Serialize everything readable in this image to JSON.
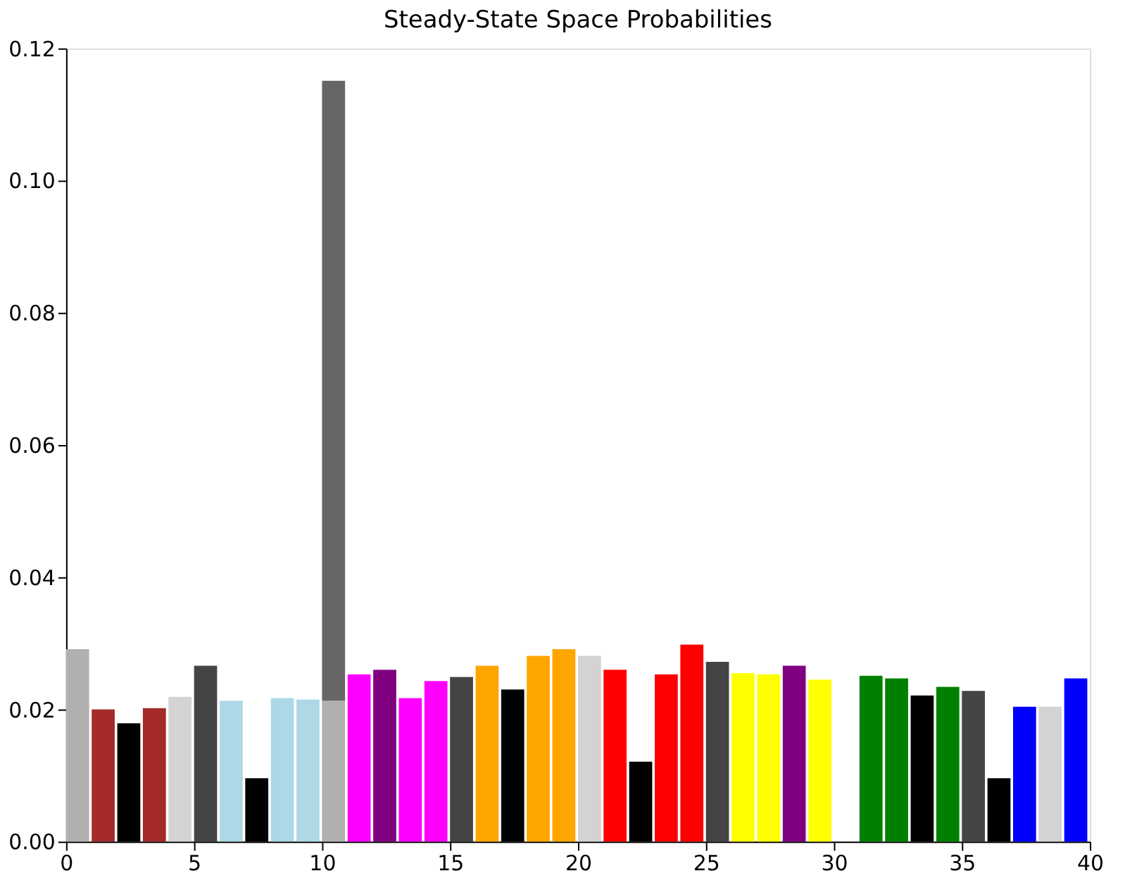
{
  "chart_data": {
    "type": "bar",
    "title": "Steady-State Space Probabilities",
    "stacked": true,
    "x": [
      0.45,
      1.45,
      2.45,
      3.45,
      4.45,
      5.45,
      6.45,
      7.45,
      8.45,
      9.45,
      10.45,
      11.45,
      12.45,
      13.45,
      14.45,
      15.45,
      16.45,
      17.45,
      18.45,
      19.45,
      20.45,
      21.45,
      22.45,
      23.45,
      24.45,
      25.45,
      26.45,
      27.45,
      28.45,
      29.45,
      30.45,
      31.45,
      32.45,
      33.45,
      34.45,
      35.45,
      36.45,
      37.45,
      38.45,
      39.45
    ],
    "series": [
      {
        "colors": [
          "#b0b0b0",
          "#a52a2a",
          "#000000",
          "#a52a2a",
          "#d3d3d3",
          "#444444",
          "#add8e6",
          "#000000",
          "#add8e6",
          "#add8e6",
          "#b0b0b0",
          "#ff00ff",
          "#800080",
          "#ff00ff",
          "#ff00ff",
          "#444444",
          "#ffa500",
          "#000000",
          "#ffa500",
          "#ffa500",
          "#d3d3d3",
          "#ff0000",
          "#000000",
          "#ff0000",
          "#ff0000",
          "#444444",
          "#ffff00",
          "#ffff00",
          "#800080",
          "#ffff00",
          "#ffffff",
          "#008000",
          "#008000",
          "#000000",
          "#008000",
          "#444444",
          "#000000",
          "#0000ff",
          "#d3d3d3",
          "#0000ff"
        ],
        "values": [
          0.0291,
          0.02,
          0.0179,
          0.0202,
          0.0219,
          0.0266,
          0.0213,
          0.0096,
          0.0217,
          0.0215,
          0.0213,
          0.0253,
          0.026,
          0.0217,
          0.0243,
          0.0249,
          0.0266,
          0.023,
          0.0281,
          0.0291,
          0.0281,
          0.026,
          0.0121,
          0.0253,
          0.0298,
          0.0272,
          0.0255,
          0.0253,
          0.0266,
          0.0245,
          0,
          0.0251,
          0.0247,
          0.0221,
          0.0234,
          0.0228,
          0.0096,
          0.0204,
          0.0204,
          0.0247
        ]
      },
      {
        "color": "#666666",
        "values": [
          null,
          null,
          null,
          null,
          null,
          null,
          null,
          null,
          null,
          null,
          0.0938,
          null,
          null,
          null,
          null,
          null,
          null,
          null,
          null,
          null,
          null,
          null,
          null,
          null,
          null,
          null,
          null,
          null,
          null,
          null,
          null,
          null,
          null,
          null,
          null,
          null,
          null,
          null,
          null,
          null
        ]
      }
    ],
    "xlim": [
      0,
      40
    ],
    "xticks": [
      0,
      5,
      10,
      15,
      20,
      25,
      30,
      35,
      40
    ],
    "ylim": [
      0,
      0.12
    ],
    "yticks": [
      {
        "value": 0,
        "label": "0.00"
      },
      {
        "value": 0.02,
        "label": "0.02"
      },
      {
        "value": 0.04,
        "label": "0.04"
      },
      {
        "value": 0.06,
        "label": "0.06"
      },
      {
        "value": 0.08,
        "label": "0.08"
      },
      {
        "value": 0.1,
        "label": "0.10"
      },
      {
        "value": 0.12,
        "label": "0.12"
      }
    ],
    "grid": false
  }
}
